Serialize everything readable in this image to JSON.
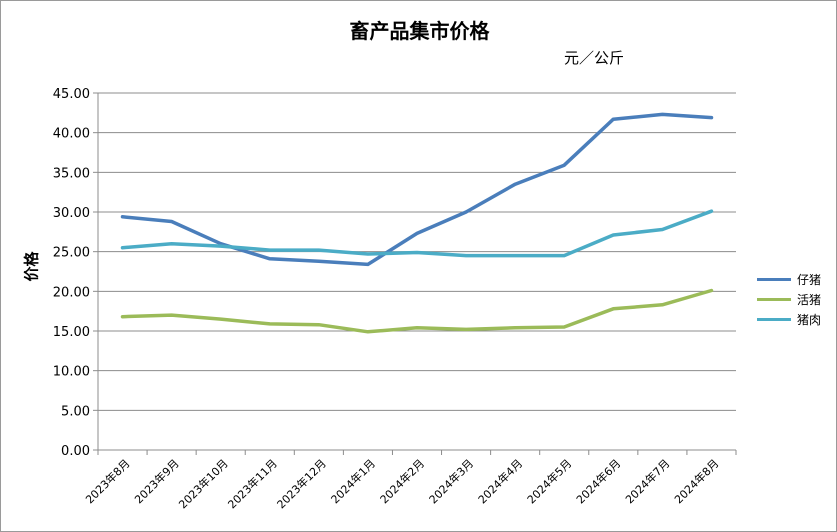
{
  "chart_data": {
    "type": "line",
    "title": "畜产品集市价格",
    "unit": "元／公斤",
    "ylabel": "价格",
    "xlabel": "",
    "ylim": [
      0,
      45
    ],
    "y_ticks": [
      "0.00",
      "5.00",
      "10.00",
      "15.00",
      "20.00",
      "25.00",
      "30.00",
      "35.00",
      "40.00",
      "45.00"
    ],
    "grid": true,
    "legend_position": "right",
    "categories": [
      "2023年8月",
      "2023年9月",
      "2023年10月",
      "2023年11月",
      "2023年12月",
      "2024年1月",
      "2024年2月",
      "2024年3月",
      "2024年4月",
      "2024年5月",
      "2024年6月",
      "2024年7月",
      "2024年8月"
    ],
    "series": [
      {
        "name": "仔猪",
        "color": "#4a7ebb",
        "values": [
          29.4,
          28.8,
          26.0,
          24.1,
          23.8,
          23.4,
          27.3,
          30.0,
          33.5,
          35.9,
          41.7,
          42.3,
          41.9
        ]
      },
      {
        "name": "活猪",
        "color": "#9bbb59",
        "values": [
          16.8,
          17.0,
          16.5,
          15.9,
          15.8,
          14.9,
          15.4,
          15.2,
          15.4,
          15.5,
          17.8,
          18.3,
          20.1
        ]
      },
      {
        "name": "猪肉",
        "color": "#4bacc6",
        "values": [
          25.5,
          26.0,
          25.7,
          25.2,
          25.2,
          24.7,
          24.9,
          24.5,
          24.5,
          24.5,
          27.1,
          27.8,
          30.1
        ]
      }
    ]
  }
}
